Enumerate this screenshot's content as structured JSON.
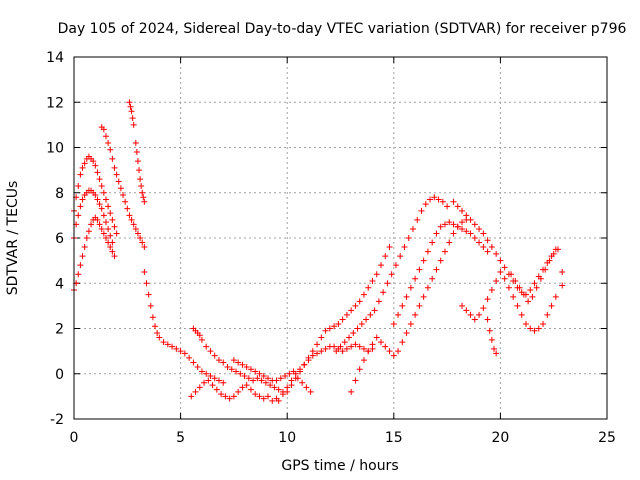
{
  "chart_data": {
    "type": "scatter",
    "title": "Day 105 of 2024, Sidereal Day-to-day VTEC variation (SDTVAR) for receiver p796",
    "xlabel": "GPS time / hours",
    "ylabel": "SDTVAR / TECUs",
    "xlim": [
      0,
      25
    ],
    "ylim": [
      -2,
      14
    ],
    "xticks": [
      0,
      5,
      10,
      15,
      20,
      25
    ],
    "yticks": [
      -2,
      0,
      2,
      4,
      6,
      8,
      10,
      12,
      14
    ],
    "grid": true,
    "marker": "+",
    "color": "#ff0000",
    "series": [
      {
        "name": "SDTVAR",
        "x": [
          0.0,
          0.1,
          0.2,
          0.3,
          0.4,
          0.5,
          0.6,
          0.7,
          0.8,
          0.9,
          1.0,
          1.1,
          1.2,
          1.3,
          1.4,
          1.5,
          1.6,
          1.7,
          1.8,
          1.9,
          2.0,
          0.0,
          0.1,
          0.2,
          0.3,
          0.4,
          0.5,
          0.6,
          0.7,
          0.8,
          0.9,
          1.0,
          1.1,
          1.2,
          1.3,
          1.4,
          1.5,
          1.6,
          1.7,
          1.8,
          0.0,
          0.1,
          0.2,
          0.3,
          0.4,
          0.5,
          0.6,
          0.7,
          0.8,
          0.9,
          1.0,
          1.1,
          1.2,
          1.3,
          1.4,
          1.5,
          1.6,
          1.7,
          1.8,
          1.9,
          1.3,
          1.4,
          1.5,
          1.6,
          1.7,
          1.8,
          1.9,
          2.0,
          2.1,
          2.2,
          2.3,
          2.4,
          2.5,
          2.6,
          2.7,
          2.8,
          2.9,
          3.0,
          3.1,
          3.2,
          3.3,
          2.6,
          2.65,
          2.7,
          2.75,
          2.8,
          2.9,
          2.95,
          3.0,
          3.05,
          3.1,
          3.15,
          3.2,
          3.25,
          3.3,
          3.3,
          3.4,
          3.5,
          3.6,
          3.7,
          3.8,
          3.9,
          4.0,
          4.2,
          4.4,
          4.6,
          4.8,
          5.0,
          5.2,
          5.4,
          5.6,
          5.8,
          6.0,
          6.2,
          6.4,
          6.6,
          6.8,
          7.0,
          5.6,
          5.7,
          5.8,
          5.9,
          6.0,
          6.2,
          6.4,
          6.6,
          6.8,
          7.0,
          7.2,
          7.4,
          7.6,
          7.8,
          8.0,
          8.2,
          8.4,
          8.6,
          8.8,
          9.0,
          9.2,
          9.4,
          9.6,
          9.8,
          5.5,
          5.7,
          5.9,
          6.1,
          6.3,
          6.5,
          6.7,
          6.9,
          7.1,
          7.3,
          7.5,
          7.7,
          7.9,
          8.1,
          8.3,
          8.5,
          8.7,
          8.9,
          9.1,
          9.3,
          9.5,
          7.5,
          7.7,
          7.9,
          8.1,
          8.3,
          8.5,
          8.7,
          8.9,
          9.1,
          9.3,
          9.5,
          9.7,
          9.9,
          10.1,
          10.3,
          10.5,
          10.7,
          10.9,
          11.1,
          9.6,
          9.8,
          10.0,
          10.2,
          10.4,
          10.6,
          10.8,
          11.0,
          11.2,
          11.4,
          11.6,
          11.8,
          12.0,
          12.2,
          12.4,
          12.6,
          12.8,
          13.0,
          13.2,
          13.4,
          13.6,
          13.8,
          14.0,
          10.0,
          10.2,
          10.4,
          10.6,
          10.8,
          11.0,
          11.2,
          11.4,
          11.6,
          11.8,
          12.0,
          12.2,
          12.4,
          12.6,
          12.8,
          13.0,
          13.2,
          13.4,
          13.6,
          13.8,
          14.0,
          14.2,
          14.4,
          14.6,
          14.8,
          12.3,
          12.5,
          12.7,
          12.9,
          13.1,
          13.3,
          13.5,
          13.7,
          13.9,
          14.1,
          14.3,
          14.5,
          14.7,
          14.9,
          15.1,
          15.3,
          15.5,
          15.7,
          15.9,
          16.1,
          16.3,
          16.5,
          16.7,
          16.9,
          17.1,
          17.3,
          17.5,
          13.0,
          13.2,
          13.4,
          13.6,
          13.8,
          14.0,
          14.2,
          14.4,
          14.6,
          14.8,
          15.0,
          15.2,
          15.4,
          15.6,
          15.8,
          16.0,
          16.2,
          16.4,
          16.6,
          16.8,
          17.0,
          17.2,
          17.4,
          17.6,
          17.8,
          18.0,
          18.2,
          18.4,
          15.0,
          15.2,
          15.4,
          15.6,
          15.8,
          16.0,
          16.2,
          16.4,
          16.6,
          16.8,
          17.0,
          17.2,
          17.4,
          17.6,
          17.8,
          18.0,
          18.2,
          18.4,
          18.6,
          18.8,
          19.0,
          19.2,
          19.4,
          17.8,
          18.0,
          18.2,
          18.4,
          18.6,
          18.8,
          19.0,
          19.2,
          19.4,
          19.6,
          19.8,
          20.0,
          20.2,
          20.4,
          20.6,
          20.8,
          21.0,
          21.2,
          21.4,
          21.6,
          21.8,
          22.0,
          22.2,
          22.4,
          22.6,
          18.2,
          18.4,
          18.6,
          18.8,
          19.0,
          19.2,
          19.4,
          19.6,
          19.8,
          20.0,
          20.2,
          20.4,
          20.6,
          20.8,
          21.0,
          21.2,
          21.4,
          21.6,
          21.8,
          22.0,
          22.2,
          22.4,
          22.6,
          19.4,
          19.5,
          19.6,
          19.7,
          19.8,
          20.5,
          20.7,
          20.9,
          21.1,
          21.3,
          21.5,
          21.7,
          21.9,
          22.1,
          22.3,
          22.5,
          22.7,
          22.9,
          22.9
        ],
        "y": [
          7.2,
          7.8,
          8.3,
          8.8,
          9.1,
          9.3,
          9.5,
          9.6,
          9.5,
          9.4,
          9.2,
          8.9,
          8.6,
          8.3,
          8.0,
          7.7,
          7.4,
          7.1,
          6.8,
          6.5,
          6.2,
          6.0,
          6.6,
          7.0,
          7.4,
          7.7,
          7.9,
          8.0,
          8.1,
          8.1,
          8.0,
          7.9,
          7.7,
          7.5,
          7.3,
          7.0,
          6.7,
          6.4,
          6.1,
          5.8,
          3.7,
          4.0,
          4.4,
          4.8,
          5.2,
          5.6,
          6.0,
          6.3,
          6.6,
          6.8,
          6.9,
          6.8,
          6.6,
          6.4,
          6.2,
          6.0,
          5.8,
          5.6,
          5.4,
          5.2,
          10.9,
          10.8,
          10.5,
          10.2,
          9.9,
          9.5,
          9.1,
          8.8,
          8.5,
          8.2,
          7.9,
          7.6,
          7.3,
          7.0,
          6.8,
          6.6,
          6.4,
          6.2,
          6.0,
          5.8,
          5.6,
          12.0,
          11.8,
          11.6,
          11.3,
          11.0,
          10.2,
          9.8,
          9.4,
          9.0,
          8.6,
          8.3,
          8.0,
          7.8,
          7.6,
          4.5,
          4.0,
          3.5,
          3.0,
          2.5,
          2.1,
          1.8,
          1.6,
          1.4,
          1.3,
          1.2,
          1.1,
          1.0,
          0.9,
          0.7,
          0.5,
          0.3,
          0.1,
          0.0,
          -0.1,
          -0.2,
          -0.3,
          -0.4,
          2.0,
          1.9,
          1.8,
          1.7,
          1.5,
          1.2,
          1.0,
          0.8,
          0.6,
          0.5,
          0.3,
          0.2,
          0.1,
          0.0,
          -0.1,
          -0.2,
          -0.3,
          -0.2,
          -0.3,
          -0.4,
          -0.5,
          -0.6,
          -0.7,
          -0.8,
          -1.0,
          -0.8,
          -0.6,
          -0.4,
          -0.3,
          -0.5,
          -0.7,
          -0.9,
          -1.0,
          -1.1,
          -1.0,
          -0.8,
          -0.6,
          -0.5,
          -0.7,
          -0.9,
          -1.0,
          -1.1,
          -1.0,
          -1.2,
          -1.1,
          0.6,
          0.5,
          0.4,
          0.3,
          0.2,
          0.1,
          0.0,
          -0.1,
          -0.2,
          -0.3,
          -0.3,
          -0.2,
          -0.1,
          0.0,
          0.1,
          -0.2,
          -0.4,
          -0.6,
          -0.8,
          -1.2,
          -0.9,
          -0.6,
          -0.3,
          0.0,
          0.2,
          0.4,
          0.6,
          0.8,
          0.9,
          1.0,
          1.1,
          1.2,
          1.2,
          1.1,
          1.0,
          1.1,
          1.2,
          1.3,
          1.2,
          1.1,
          1.0,
          1.1,
          -0.8,
          -0.5,
          -0.2,
          0.1,
          0.4,
          0.7,
          1.0,
          1.3,
          1.6,
          1.9,
          2.0,
          2.1,
          2.2,
          2.4,
          2.6,
          2.8,
          3.0,
          3.2,
          3.5,
          3.8,
          4.1,
          4.4,
          4.8,
          5.2,
          5.6,
          1.0,
          1.2,
          1.4,
          1.6,
          1.8,
          2.0,
          2.2,
          2.4,
          2.6,
          2.8,
          3.2,
          3.6,
          4.0,
          4.4,
          4.8,
          5.2,
          5.6,
          6.0,
          6.4,
          6.8,
          7.2,
          7.5,
          7.7,
          7.8,
          7.7,
          7.6,
          7.4,
          -0.8,
          -0.3,
          0.2,
          0.6,
          1.0,
          1.3,
          1.6,
          1.4,
          1.2,
          1.0,
          0.8,
          1.0,
          1.4,
          1.8,
          2.2,
          2.6,
          3.0,
          3.4,
          3.8,
          4.2,
          4.6,
          5.0,
          5.4,
          5.8,
          6.2,
          6.5,
          6.7,
          6.8,
          2.2,
          2.6,
          3.0,
          3.4,
          3.8,
          4.2,
          4.6,
          5.0,
          5.4,
          5.8,
          6.2,
          6.5,
          6.6,
          6.7,
          6.6,
          6.5,
          6.4,
          6.3,
          6.2,
          6.0,
          5.8,
          5.6,
          5.4,
          7.6,
          7.4,
          7.2,
          7.0,
          6.8,
          6.6,
          6.4,
          6.2,
          5.9,
          5.6,
          5.3,
          5.0,
          4.7,
          4.4,
          4.1,
          3.8,
          3.6,
          3.5,
          3.7,
          4.0,
          4.3,
          4.6,
          4.9,
          5.2,
          5.5,
          3.0,
          2.8,
          2.6,
          2.4,
          2.6,
          2.9,
          3.3,
          3.7,
          4.1,
          4.5,
          4.2,
          3.8,
          3.4,
          3.0,
          2.6,
          2.2,
          2.0,
          1.9,
          2.0,
          2.2,
          2.6,
          3.0,
          3.4,
          2.4,
          1.9,
          1.5,
          1.1,
          0.9,
          4.4,
          4.1,
          3.8,
          3.5,
          3.2,
          3.4,
          3.8,
          4.2,
          4.6,
          5.0,
          5.3,
          5.5,
          4.5,
          3.9
        ]
      }
    ]
  }
}
